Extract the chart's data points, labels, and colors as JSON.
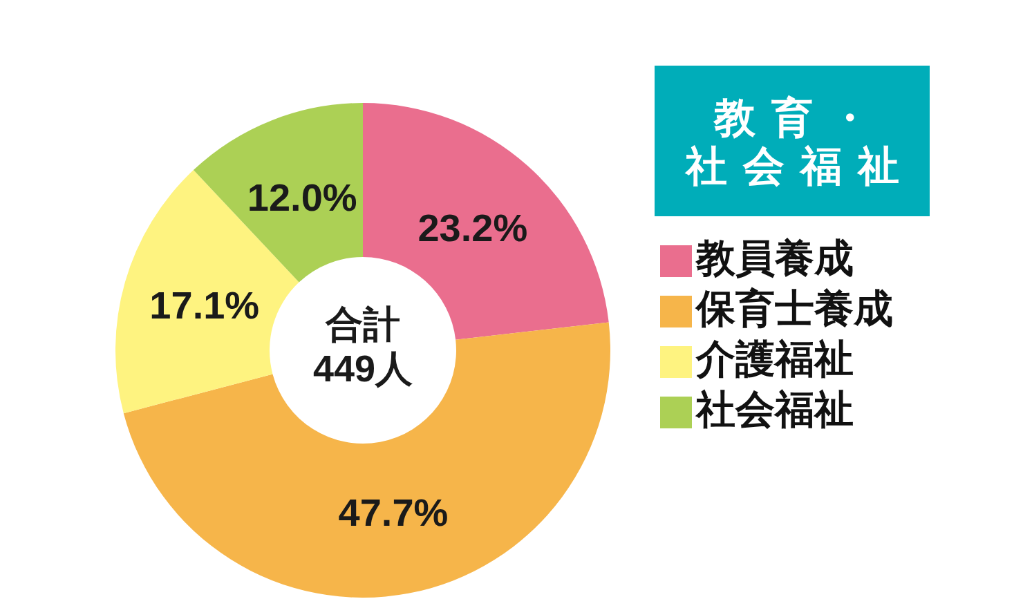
{
  "chart_data": {
    "type": "donut",
    "title": "教育・社会福祉",
    "categories": [
      "教員養成",
      "保育士養成",
      "介護福祉",
      "社会福祉"
    ],
    "values": [
      23.2,
      47.7,
      17.1,
      12.0
    ],
    "colors": [
      "#ea6e8e",
      "#f6b54a",
      "#fef380",
      "#acd055"
    ],
    "value_labels": [
      "23.2%",
      "47.7%",
      "17.1%",
      "12.0%"
    ],
    "annotations": [
      "合計\n449人"
    ],
    "legend": "right"
  }
}
